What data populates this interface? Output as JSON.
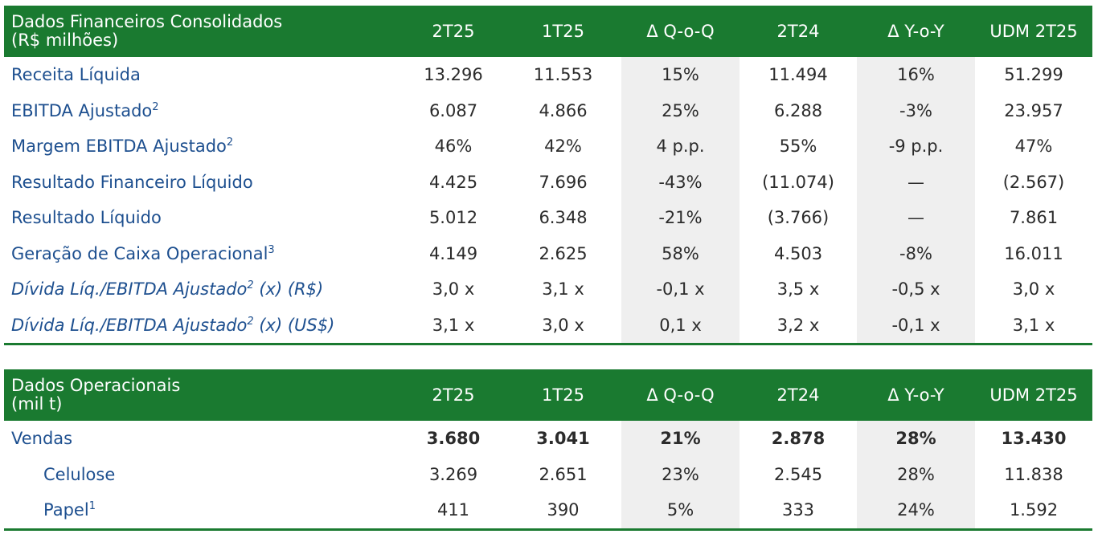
{
  "financial_table": {
    "title_line1": "Dados Financeiros Consolidados",
    "title_line2": "(R$ milhões)",
    "columns": [
      "2T25",
      "1T25",
      "Δ Q-o-Q",
      "2T24",
      "Δ Y-o-Y",
      "UDM 2T25"
    ],
    "rows": [
      {
        "label": "Receita Líquida",
        "sup": "",
        "italic": false,
        "values": [
          "13.296",
          "11.553",
          "15%",
          "11.494",
          "16%",
          "51.299"
        ]
      },
      {
        "label": "EBITDA Ajustado",
        "sup": "2",
        "italic": false,
        "values": [
          "6.087",
          "4.866",
          "25%",
          "6.288",
          "-3%",
          "23.957"
        ]
      },
      {
        "label": "Margem EBITDA Ajustado",
        "sup": "2",
        "italic": false,
        "values": [
          "46%",
          "42%",
          "4 p.p.",
          "55%",
          "-9 p.p.",
          "47%"
        ]
      },
      {
        "label": "Resultado Financeiro Líquido",
        "sup": "",
        "italic": false,
        "values": [
          "4.425",
          "7.696",
          "-43%",
          "(11.074)",
          "—",
          "(2.567)"
        ]
      },
      {
        "label": "Resultado Líquido",
        "sup": "",
        "italic": false,
        "values": [
          "5.012",
          "6.348",
          "-21%",
          "(3.766)",
          "—",
          "7.861"
        ]
      },
      {
        "label": "Geração de Caixa Operacional",
        "sup": "3",
        "italic": false,
        "values": [
          "4.149",
          "2.625",
          "58%",
          "4.503",
          "-8%",
          "16.011"
        ]
      },
      {
        "label": "Dívida Líq./EBITDA Ajustado",
        "sup": "2",
        "suffix": " (x) (R$)",
        "italic": true,
        "values": [
          "3,0 x",
          "3,1 x",
          "-0,1 x",
          "3,5 x",
          "-0,5 x",
          "3,0 x"
        ]
      },
      {
        "label": "Dívida Líq./EBITDA Ajustado",
        "sup": "2",
        "suffix": " (x) (US$)",
        "italic": true,
        "values": [
          "3,1 x",
          "3,0 x",
          "0,1 x",
          "3,2 x",
          "-0,1 x",
          "3,1 x"
        ]
      }
    ]
  },
  "operational_table": {
    "title_line1": "Dados Operacionais",
    "title_line2": "(mil t)",
    "columns": [
      "2T25",
      "1T25",
      "Δ Q-o-Q",
      "2T24",
      "Δ Y-o-Y",
      "UDM 2T25"
    ],
    "rows": [
      {
        "label": "Vendas",
        "sup": "",
        "bold": true,
        "indent": false,
        "values": [
          "3.680",
          "3.041",
          "21%",
          "2.878",
          "28%",
          "13.430"
        ]
      },
      {
        "label": "Celulose",
        "sup": "",
        "bold": false,
        "indent": true,
        "values": [
          "3.269",
          "2.651",
          "23%",
          "2.545",
          "28%",
          "11.838"
        ]
      },
      {
        "label": "Papel",
        "sup": "1",
        "bold": false,
        "indent": true,
        "values": [
          "411",
          "390",
          "5%",
          "333",
          "24%",
          "1.592"
        ]
      }
    ]
  },
  "colors": {
    "header_green": "#1a7a30",
    "label_blue": "#1d4f8f",
    "shade_gray": "#efefef"
  }
}
